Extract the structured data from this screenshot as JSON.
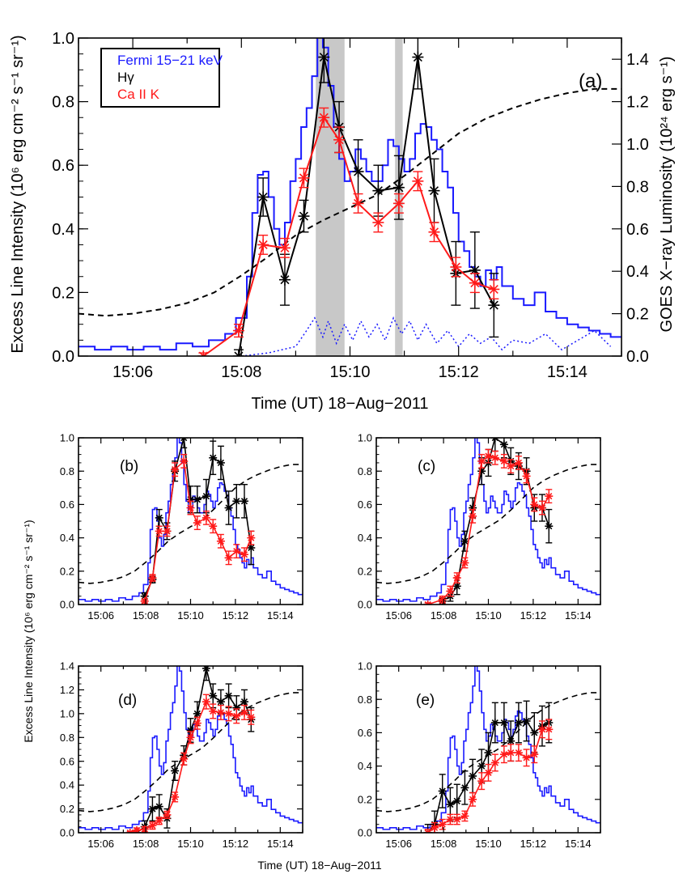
{
  "figure": {
    "shared_ylabel": "Excess Line Intensity (10⁶ erg cm⁻² s⁻¹ sr⁻¹)",
    "shared_xlabel": "Time (UT) 18−Aug−2011"
  },
  "colors": {
    "fermi": "#1a1aff",
    "hgamma": "#000000",
    "caii": "#ff1a1a",
    "goes": "#000000",
    "shade": "#c8c8c8"
  },
  "chart_data": [
    {
      "panel": "a",
      "type": "line",
      "panel_label": "(a)",
      "xlabel": "Time (UT) 18−Aug−2011",
      "ylabel": "Excess Line Intensity (10⁶ erg cm⁻² s⁻¹ sr⁻¹)",
      "y2label": "GOES X−ray Luminosity (10²⁴ erg s⁻¹)",
      "xlim": [
        "15:05.0",
        "15:15.0"
      ],
      "ylim": [
        0,
        1.0
      ],
      "y2lim": [
        0,
        1.5
      ],
      "xticks": [
        "15:06",
        "15:08",
        "15:10",
        "15:12",
        "15:14"
      ],
      "yticks": [
        "0.0",
        "0.2",
        "0.4",
        "0.6",
        "0.8",
        "1.0"
      ],
      "y2ticks": [
        "0.0",
        "0.2",
        "0.4",
        "0.6",
        "0.8",
        "1.0",
        "1.2",
        "1.4"
      ],
      "legend": {
        "placement": "top-left",
        "entries": [
          "Fermi 15−21 keV",
          "Hγ",
          "Ca II K"
        ]
      },
      "shaded_intervals": [
        [
          "15:09.37",
          "15:09.90"
        ],
        [
          "15:10.83",
          "15:10.97"
        ]
      ],
      "series": [
        {
          "name": "Fermi 15−21 keV",
          "style": "step",
          "color": "#1a1aff",
          "x": [
            "15:05.0",
            "15:05.3",
            "15:05.6",
            "15:05.9",
            "15:06.2",
            "15:06.5",
            "15:06.8",
            "15:07.1",
            "15:07.4",
            "15:07.7",
            "15:07.9",
            "15:08.1",
            "15:08.2",
            "15:08.3",
            "15:08.4",
            "15:08.5",
            "15:08.6",
            "15:08.7",
            "15:08.8",
            "15:08.9",
            "15:09.0",
            "15:09.1",
            "15:09.2",
            "15:09.3",
            "15:09.4",
            "15:09.5",
            "15:09.6",
            "15:09.7",
            "15:09.8",
            "15:09.9",
            "15:10.0",
            "15:10.1",
            "15:10.2",
            "15:10.3",
            "15:10.4",
            "15:10.5",
            "15:10.6",
            "15:10.7",
            "15:10.8",
            "15:10.9",
            "15:11.0",
            "15:11.1",
            "15:11.2",
            "15:11.3",
            "15:11.4",
            "15:11.5",
            "15:11.6",
            "15:11.7",
            "15:11.8",
            "15:11.9",
            "15:12.0",
            "15:12.1",
            "15:12.2",
            "15:12.3",
            "15:12.4",
            "15:12.5",
            "15:12.6",
            "15:12.7",
            "15:12.8",
            "15:13.0",
            "15:13.2",
            "15:13.4",
            "15:13.6",
            "15:13.8",
            "15:14.0",
            "15:14.2",
            "15:14.4",
            "15:14.6",
            "15:14.8"
          ],
          "y": [
            0.03,
            0.02,
            0.03,
            0.02,
            0.03,
            0.02,
            0.04,
            0.03,
            0.05,
            0.07,
            0.12,
            0.25,
            0.45,
            0.57,
            0.58,
            0.5,
            0.4,
            0.35,
            0.42,
            0.55,
            0.62,
            0.72,
            0.78,
            0.88,
            1.02,
            0.97,
            0.85,
            0.72,
            0.62,
            0.55,
            0.58,
            0.65,
            0.62,
            0.58,
            0.55,
            0.55,
            0.6,
            0.68,
            0.66,
            0.62,
            0.58,
            0.62,
            0.7,
            0.73,
            0.72,
            0.68,
            0.65,
            0.58,
            0.53,
            0.45,
            0.36,
            0.33,
            0.28,
            0.25,
            0.22,
            0.27,
            0.24,
            0.28,
            0.22,
            0.18,
            0.16,
            0.2,
            0.14,
            0.12,
            0.1,
            0.09,
            0.08,
            0.07,
            0.06
          ]
        },
        {
          "name": "Hγ",
          "style": "line-errorbars",
          "color": "#000000",
          "x": [
            "15:07.95",
            "15:08.4",
            "15:08.8",
            "15:09.15",
            "15:09.52",
            "15:09.8",
            "15:10.15",
            "15:10.52",
            "15:10.9",
            "15:11.25",
            "15:11.55",
            "15:11.95",
            "15:12.3",
            "15:12.65"
          ],
          "y": [
            0.0,
            0.5,
            0.24,
            0.44,
            0.94,
            0.72,
            0.58,
            0.52,
            0.53,
            0.94,
            0.52,
            0.26,
            0.27,
            0.16
          ],
          "err": [
            0.02,
            0.06,
            0.08,
            0.05,
            0.08,
            0.08,
            0.1,
            0.08,
            0.1,
            0.1,
            0.1,
            0.1,
            0.12,
            0.1
          ]
        },
        {
          "name": "Ca II K",
          "style": "line-errorbars",
          "color": "#ff1a1a",
          "x": [
            "15:07.3",
            "15:07.95",
            "15:08.4",
            "15:08.8",
            "15:09.15",
            "15:09.52",
            "15:09.8",
            "15:10.15",
            "15:10.52",
            "15:10.9",
            "15:11.25",
            "15:11.55",
            "15:11.95",
            "15:12.3",
            "15:12.65"
          ],
          "y": [
            0.0,
            0.08,
            0.35,
            0.34,
            0.56,
            0.75,
            0.68,
            0.48,
            0.42,
            0.48,
            0.55,
            0.39,
            0.28,
            0.23,
            0.21
          ],
          "err": [
            0.01,
            0.02,
            0.03,
            0.03,
            0.03,
            0.03,
            0.04,
            0.03,
            0.03,
            0.03,
            0.03,
            0.03,
            0.03,
            0.03,
            0.03
          ]
        },
        {
          "name": "GOES",
          "style": "dashed",
          "color": "#000000",
          "axis": "y2",
          "x": [
            "15:05.0",
            "15:05.5",
            "15:06.0",
            "15:06.5",
            "15:07.0",
            "15:07.5",
            "15:08.0",
            "15:08.5",
            "15:09.0",
            "15:09.5",
            "15:10.0",
            "15:10.5",
            "15:11.0",
            "15:11.5",
            "15:12.0",
            "15:12.5",
            "15:13.0",
            "15:13.5",
            "15:14.0",
            "15:14.5",
            "15:15.0"
          ],
          "y": [
            0.2,
            0.19,
            0.2,
            0.22,
            0.25,
            0.3,
            0.38,
            0.47,
            0.57,
            0.64,
            0.7,
            0.76,
            0.85,
            0.95,
            1.05,
            1.12,
            1.17,
            1.21,
            1.24,
            1.26,
            1.26
          ]
        },
        {
          "name": "",
          "style": "dotted",
          "color": "#1a1aff",
          "x": [
            "15:08.0",
            "15:08.5",
            "15:09.0",
            "15:09.2",
            "15:09.35",
            "15:09.5",
            "15:09.6",
            "15:09.75",
            "15:09.9",
            "15:10.05",
            "15:10.2",
            "15:10.35",
            "15:10.5",
            "15:10.65",
            "15:10.8",
            "15:10.95",
            "15:11.1",
            "15:11.25",
            "15:11.4",
            "15:11.6",
            "15:11.8",
            "15:12.0",
            "15:12.2",
            "15:12.4",
            "15:12.6",
            "15:12.8",
            "15:13.0",
            "15:13.3",
            "15:13.6",
            "15:13.9",
            "15:14.2",
            "15:14.5",
            "15:14.8"
          ],
          "y": [
            0.0,
            0.01,
            0.03,
            0.08,
            0.12,
            0.06,
            0.11,
            0.04,
            0.1,
            0.05,
            0.11,
            0.06,
            0.1,
            0.05,
            0.12,
            0.07,
            0.11,
            0.05,
            0.1,
            0.04,
            0.08,
            0.03,
            0.07,
            0.04,
            0.06,
            0.02,
            0.05,
            0.04,
            0.07,
            0.02,
            0.05,
            0.08,
            0.03
          ]
        }
      ]
    },
    {
      "panel": "b",
      "type": "line",
      "panel_label": "(b)",
      "xlim": [
        "15:05.0",
        "15:15.0"
      ],
      "ylim": [
        0,
        1.0
      ],
      "xticks": [
        "15:06",
        "15:08",
        "15:10",
        "15:12",
        "15:14"
      ],
      "yticks": [
        "0.0",
        "0.2",
        "0.4",
        "0.6",
        "0.8",
        "1.0"
      ],
      "series": [
        {
          "name": "Hγ",
          "color": "#000000",
          "x": [
            "15:07.95",
            "15:08.3",
            "15:08.6",
            "15:08.95",
            "15:09.3",
            "15:09.7",
            "15:10.0",
            "15:10.3",
            "15:10.7",
            "15:11.0",
            "15:11.35",
            "15:11.7",
            "15:12.05",
            "15:12.4",
            "15:12.7"
          ],
          "y": [
            0.05,
            0.15,
            0.52,
            0.44,
            0.8,
            1.0,
            0.63,
            0.63,
            0.65,
            0.88,
            0.85,
            0.58,
            0.62,
            0.62,
            0.34
          ],
          "err": [
            0.02,
            0.02,
            0.05,
            0.05,
            0.06,
            0.06,
            0.08,
            0.08,
            0.1,
            0.1,
            0.1,
            0.1,
            0.1,
            0.1,
            0.1
          ]
        },
        {
          "name": "Ca II K",
          "color": "#ff1a1a",
          "x": [
            "15:07.95",
            "15:08.3",
            "15:08.6",
            "15:08.95",
            "15:09.3",
            "15:09.7",
            "15:10.0",
            "15:10.3",
            "15:10.7",
            "15:11.0",
            "15:11.35",
            "15:11.7",
            "15:12.05",
            "15:12.4",
            "15:12.7"
          ],
          "y": [
            0.02,
            0.16,
            0.44,
            0.44,
            0.81,
            0.86,
            0.58,
            0.49,
            0.52,
            0.47,
            0.38,
            0.28,
            0.32,
            0.3,
            0.4
          ],
          "err": [
            0.01,
            0.02,
            0.03,
            0.03,
            0.04,
            0.04,
            0.04,
            0.04,
            0.04,
            0.04,
            0.04,
            0.04,
            0.04,
            0.04,
            0.04
          ]
        }
      ]
    },
    {
      "panel": "c",
      "type": "line",
      "panel_label": "(c)",
      "xlim": [
        "15:05.0",
        "15:15.0"
      ],
      "ylim": [
        0,
        1.0
      ],
      "xticks": [
        "15:06",
        "15:08",
        "15:10",
        "15:12",
        "15:14"
      ],
      "yticks": [
        "0.0",
        "0.2",
        "0.4",
        "0.6",
        "0.8",
        "1.0"
      ],
      "series": [
        {
          "name": "Hγ",
          "color": "#000000",
          "x": [
            "15:07.95",
            "15:08.3",
            "15:08.6",
            "15:08.95",
            "15:09.3",
            "15:09.7",
            "15:10.0",
            "15:10.3",
            "15:10.7",
            "15:11.0",
            "15:11.35",
            "15:11.7",
            "15:12.05",
            "15:12.4",
            "15:12.7"
          ],
          "y": [
            0.02,
            0.05,
            0.11,
            0.38,
            0.58,
            0.8,
            0.85,
            1.0,
            0.96,
            0.86,
            0.83,
            0.8,
            0.58,
            0.58,
            0.47
          ],
          "err": [
            0.02,
            0.03,
            0.05,
            0.06,
            0.06,
            0.08,
            0.08,
            0.08,
            0.08,
            0.08,
            0.08,
            0.08,
            0.08,
            0.08,
            0.1
          ]
        },
        {
          "name": "Ca II K",
          "color": "#ff1a1a",
          "x": [
            "15:07.3",
            "15:07.95",
            "15:08.3",
            "15:08.6",
            "15:08.95",
            "15:09.3",
            "15:09.7",
            "15:10.0",
            "15:10.3",
            "15:10.7",
            "15:11.0",
            "15:11.35",
            "15:11.7",
            "15:12.05",
            "15:12.4",
            "15:12.7"
          ],
          "y": [
            0.0,
            0.03,
            0.08,
            0.16,
            0.25,
            0.53,
            0.86,
            0.89,
            0.88,
            0.86,
            0.83,
            0.85,
            0.77,
            0.6,
            0.58,
            0.65
          ],
          "err": [
            0.01,
            0.02,
            0.03,
            0.03,
            0.03,
            0.04,
            0.04,
            0.04,
            0.04,
            0.04,
            0.04,
            0.04,
            0.04,
            0.04,
            0.04,
            0.04
          ]
        }
      ]
    },
    {
      "panel": "d",
      "type": "line",
      "panel_label": "(d)",
      "xlim": [
        "15:05.0",
        "15:15.0"
      ],
      "ylim": [
        0,
        1.4
      ],
      "xticks": [
        "15:06",
        "15:08",
        "15:10",
        "15:12",
        "15:14"
      ],
      "yticks": [
        "0.0",
        "0.2",
        "0.4",
        "0.6",
        "0.8",
        "1.0",
        "1.2",
        "1.4"
      ],
      "series": [
        {
          "name": "Hγ",
          "color": "#000000",
          "x": [
            "15:07.6",
            "15:07.95",
            "15:08.3",
            "15:08.6",
            "15:08.95",
            "15:09.3",
            "15:09.7",
            "15:10.0",
            "15:10.3",
            "15:10.7",
            "15:11.0",
            "15:11.35",
            "15:11.7",
            "15:12.05",
            "15:12.4",
            "15:12.7"
          ],
          "y": [
            0.0,
            0.05,
            0.2,
            0.22,
            0.12,
            0.52,
            0.65,
            0.86,
            1.0,
            1.38,
            1.15,
            1.1,
            1.15,
            1.05,
            1.1,
            0.95
          ],
          "err": [
            0.02,
            0.05,
            0.1,
            0.1,
            0.08,
            0.08,
            0.08,
            0.1,
            0.1,
            0.1,
            0.1,
            0.1,
            0.1,
            0.1,
            0.1,
            0.1
          ]
        },
        {
          "name": "Ca II K",
          "color": "#ff1a1a",
          "x": [
            "15:07.3",
            "15:07.6",
            "15:07.95",
            "15:08.3",
            "15:08.6",
            "15:08.95",
            "15:09.3",
            "15:09.7",
            "15:10.0",
            "15:10.3",
            "15:10.7",
            "15:11.0",
            "15:11.35",
            "15:11.7",
            "15:12.05",
            "15:12.4",
            "15:12.7"
          ],
          "y": [
            0.0,
            0.02,
            0.03,
            0.06,
            0.1,
            0.15,
            0.3,
            0.62,
            0.8,
            0.92,
            1.1,
            1.02,
            1.01,
            1.0,
            0.98,
            1.01,
            0.97
          ],
          "err": [
            0.01,
            0.02,
            0.02,
            0.03,
            0.03,
            0.03,
            0.04,
            0.05,
            0.05,
            0.05,
            0.06,
            0.06,
            0.06,
            0.06,
            0.06,
            0.06,
            0.06
          ]
        }
      ]
    },
    {
      "panel": "e",
      "type": "line",
      "panel_label": "(e)",
      "xlim": [
        "15:05.0",
        "15:15.0"
      ],
      "ylim": [
        0,
        1.0
      ],
      "xticks": [
        "15:06",
        "15:08",
        "15:10",
        "15:12",
        "15:14"
      ],
      "yticks": [
        "0.0",
        "0.2",
        "0.4",
        "0.6",
        "0.8",
        "1.0"
      ],
      "series": [
        {
          "name": "Hγ",
          "color": "#000000",
          "x": [
            "15:07.3",
            "15:07.6",
            "15:07.95",
            "15:08.3",
            "15:08.6",
            "15:08.95",
            "15:09.3",
            "15:09.7",
            "15:10.0",
            "15:10.3",
            "15:10.7",
            "15:11.0",
            "15:11.35",
            "15:11.7",
            "15:12.05",
            "15:12.4",
            "15:12.7"
          ],
          "y": [
            0.0,
            0.05,
            0.25,
            0.17,
            0.19,
            0.27,
            0.34,
            0.4,
            0.48,
            0.66,
            0.66,
            0.55,
            0.66,
            0.67,
            0.6,
            0.64,
            0.66
          ],
          "err": [
            0.05,
            0.08,
            0.1,
            0.1,
            0.1,
            0.1,
            0.1,
            0.1,
            0.12,
            0.12,
            0.12,
            0.12,
            0.12,
            0.12,
            0.12,
            0.12,
            0.12
          ]
        },
        {
          "name": "Ca II K",
          "color": "#ff1a1a",
          "x": [
            "15:07.3",
            "15:07.6",
            "15:07.95",
            "15:08.3",
            "15:08.6",
            "15:08.95",
            "15:09.3",
            "15:09.7",
            "15:10.0",
            "15:10.3",
            "15:10.7",
            "15:11.0",
            "15:11.35",
            "15:11.7",
            "15:12.05",
            "15:12.4",
            "15:12.7"
          ],
          "y": [
            0.0,
            0.03,
            0.05,
            0.08,
            0.08,
            0.1,
            0.2,
            0.31,
            0.36,
            0.42,
            0.47,
            0.48,
            0.48,
            0.45,
            0.47,
            0.62,
            0.62
          ],
          "err": [
            0.02,
            0.03,
            0.03,
            0.03,
            0.03,
            0.03,
            0.04,
            0.05,
            0.05,
            0.05,
            0.05,
            0.05,
            0.05,
            0.05,
            0.05,
            0.05,
            0.06
          ]
        }
      ]
    }
  ]
}
